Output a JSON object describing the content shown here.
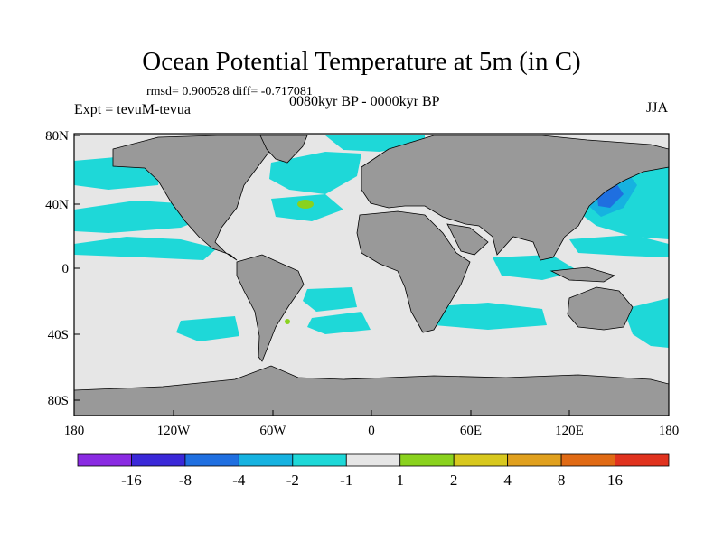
{
  "title": "Ocean Potential Temperature at 5m (in C)",
  "stats": "rmsd= 0.900528  diff= -0.717081",
  "experiment": "Expt = tevuM-tevua",
  "period": "0080kyr BP - 0000kyr BP",
  "season": "JJA",
  "axes": {
    "x_ticks": [
      "180",
      "120W",
      "60W",
      "0",
      "60E",
      "120E",
      "180"
    ],
    "y_ticks": [
      "80N",
      "40N",
      "0",
      "40S",
      "80S"
    ]
  },
  "colorbar": {
    "labels": [
      "-16",
      "-8",
      "-4",
      "-2",
      "-1",
      "1",
      "2",
      "4",
      "8",
      "16"
    ],
    "colors": [
      "#8a2be2",
      "#3a28d8",
      "#1f6fe0",
      "#16b2e0",
      "#1ed8d8",
      "#e6e6e6",
      "#8ad21e",
      "#d8c81e",
      "#e0a01e",
      "#e06a14",
      "#e0321e"
    ]
  },
  "colors": {
    "land": "#999999",
    "ocean_neutral": "#e6e6e6",
    "anomaly_cool": "#1ed8d8",
    "anomaly_cold": "#16b2e0",
    "anomaly_strong_cold": "#1f6fe0"
  }
}
